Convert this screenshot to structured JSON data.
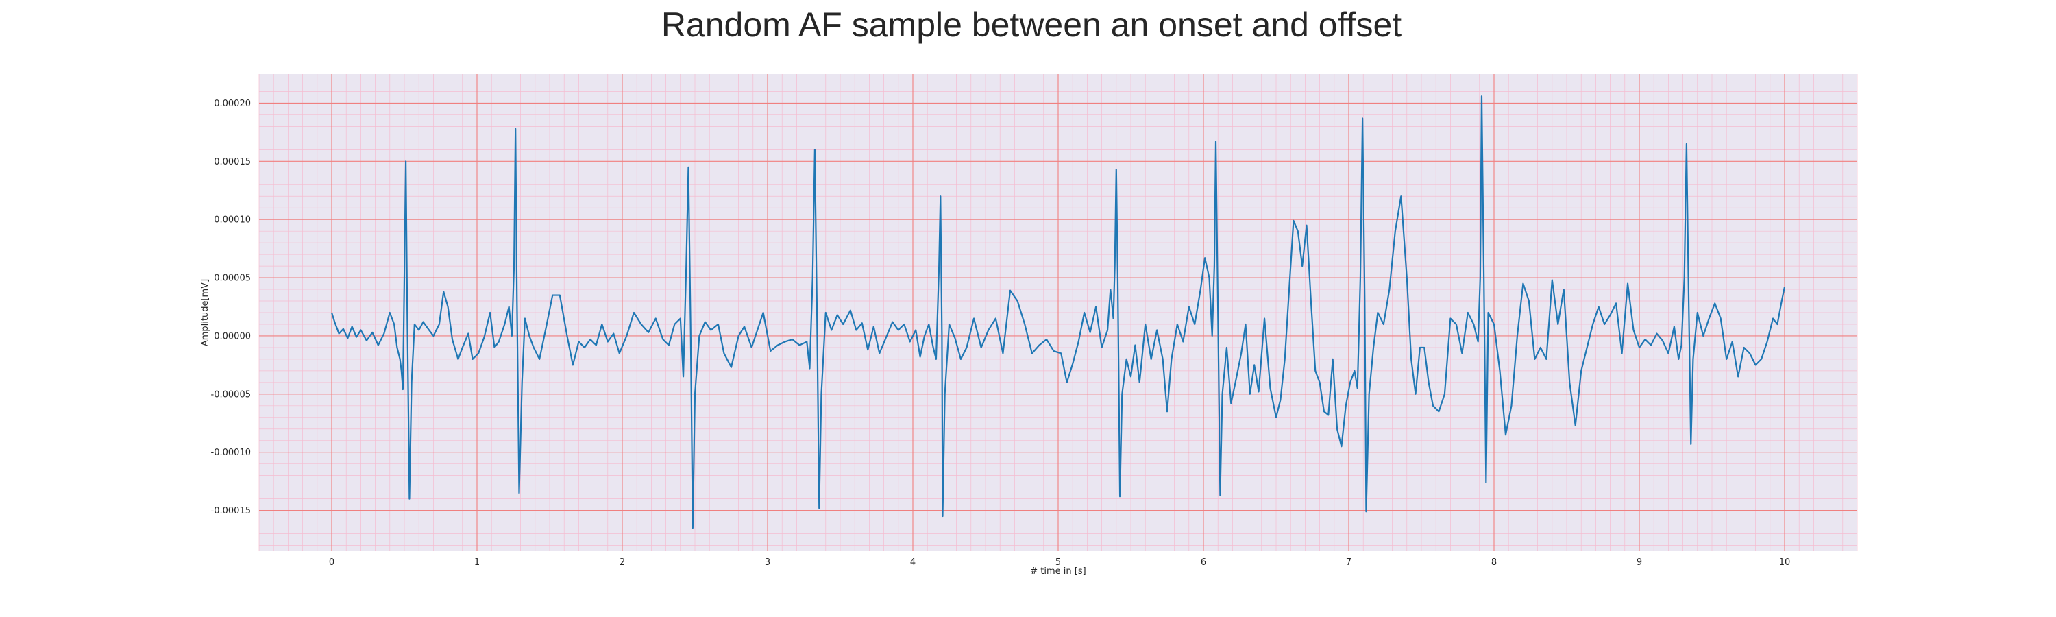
{
  "chart_data": {
    "type": "line",
    "title": "Random AF sample between an onset and offset",
    "xlabel": "# time in [s]",
    "ylabel": "Amplitude[mV]",
    "xlim": [
      -0.5,
      10.5
    ],
    "ylim": [
      -0.000185,
      0.000225
    ],
    "x_ticks": [
      0,
      1,
      2,
      3,
      4,
      5,
      6,
      7,
      8,
      9,
      10
    ],
    "x_tick_labels": [
      "0",
      "1",
      "2",
      "3",
      "4",
      "5",
      "6",
      "7",
      "8",
      "9",
      "10"
    ],
    "y_ticks": [
      -0.00015,
      -0.0001,
      -5e-05,
      0,
      5e-05,
      0.0001,
      0.00015,
      0.0002
    ],
    "y_tick_labels": [
      "-0.00015",
      "-0.00010",
      "-0.00005",
      "0.00000",
      "0.00005",
      "0.00010",
      "0.00015",
      "0.00020"
    ],
    "grid": true,
    "colors": {
      "background": "#eae6f1",
      "major_grid": "#f08080",
      "minor_grid": "#f5bcd0",
      "line": "#1f77b4"
    },
    "series": [
      {
        "name": "",
        "points": [
          [
            0.0,
            2e-05
          ],
          [
            0.02,
            1.2e-05
          ],
          [
            0.05,
            2e-06
          ],
          [
            0.08,
            6e-06
          ],
          [
            0.11,
            -2e-06
          ],
          [
            0.14,
            8e-06
          ],
          [
            0.17,
            -1e-06
          ],
          [
            0.2,
            5e-06
          ],
          [
            0.24,
            -4e-06
          ],
          [
            0.28,
            3e-06
          ],
          [
            0.32,
            -8e-06
          ],
          [
            0.36,
            2e-06
          ],
          [
            0.4,
            2e-05
          ],
          [
            0.43,
            1e-05
          ],
          [
            0.45,
            -1e-05
          ],
          [
            0.47,
            -2e-05
          ],
          [
            0.48,
            -3e-05
          ],
          [
            0.49,
            -4.6e-05
          ],
          [
            0.5,
            5e-05
          ],
          [
            0.51,
            0.00015
          ],
          [
            0.52,
            2e-05
          ],
          [
            0.535,
            -0.00014
          ],
          [
            0.55,
            -4e-05
          ],
          [
            0.57,
            1e-05
          ],
          [
            0.6,
            5e-06
          ],
          [
            0.63,
            1.2e-05
          ],
          [
            0.67,
            5e-06
          ],
          [
            0.7,
            0.0
          ],
          [
            0.74,
            1e-05
          ],
          [
            0.77,
            3.8e-05
          ],
          [
            0.8,
            2.5e-05
          ],
          [
            0.83,
            -3e-06
          ],
          [
            0.87,
            -2e-05
          ],
          [
            0.9,
            -1e-05
          ],
          [
            0.94,
            2e-06
          ],
          [
            0.97,
            -2e-05
          ],
          [
            1.01,
            -1.5e-05
          ],
          [
            1.05,
            -1e-06
          ],
          [
            1.09,
            2e-05
          ],
          [
            1.12,
            -1e-05
          ],
          [
            1.15,
            -5e-06
          ],
          [
            1.19,
            1e-05
          ],
          [
            1.22,
            2.5e-05
          ],
          [
            1.24,
            0.0
          ],
          [
            1.255,
            6e-05
          ],
          [
            1.265,
            0.000178
          ],
          [
            1.275,
            3e-05
          ],
          [
            1.29,
            -0.000135
          ],
          [
            1.31,
            -4e-05
          ],
          [
            1.33,
            1.5e-05
          ],
          [
            1.36,
            0.0
          ],
          [
            1.39,
            -1e-05
          ],
          [
            1.43,
            -2e-05
          ],
          [
            1.48,
            1e-05
          ],
          [
            1.52,
            3.5e-05
          ],
          [
            1.57,
            3.5e-05
          ],
          [
            1.62,
            0.0
          ],
          [
            1.66,
            -2.5e-05
          ],
          [
            1.7,
            -5e-06
          ],
          [
            1.74,
            -1e-05
          ],
          [
            1.78,
            -3e-06
          ],
          [
            1.82,
            -8e-06
          ],
          [
            1.86,
            1e-05
          ],
          [
            1.9,
            -5e-06
          ],
          [
            1.94,
            2e-06
          ],
          [
            1.98,
            -1.5e-05
          ],
          [
            2.03,
            0.0
          ],
          [
            2.08,
            2e-05
          ],
          [
            2.13,
            1e-05
          ],
          [
            2.18,
            3e-06
          ],
          [
            2.23,
            1.5e-05
          ],
          [
            2.28,
            -3e-06
          ],
          [
            2.32,
            -8e-06
          ],
          [
            2.36,
            1e-05
          ],
          [
            2.4,
            1.5e-05
          ],
          [
            2.42,
            -3.5e-05
          ],
          [
            2.44,
            6e-05
          ],
          [
            2.455,
            0.000145
          ],
          [
            2.47,
            1e-05
          ],
          [
            2.485,
            -0.000165
          ],
          [
            2.5,
            -5e-05
          ],
          [
            2.53,
            0.0
          ],
          [
            2.57,
            1.2e-05
          ],
          [
            2.61,
            5e-06
          ],
          [
            2.66,
            1e-05
          ],
          [
            2.7,
            -1.5e-05
          ],
          [
            2.75,
            -2.7e-05
          ],
          [
            2.8,
            0.0
          ],
          [
            2.84,
            8e-06
          ],
          [
            2.89,
            -1e-05
          ],
          [
            2.93,
            5e-06
          ],
          [
            2.97,
            2e-05
          ],
          [
            3.02,
            -1.3e-05
          ],
          [
            3.07,
            -8e-06
          ],
          [
            3.12,
            -5e-06
          ],
          [
            3.17,
            -3e-06
          ],
          [
            3.22,
            -8e-06
          ],
          [
            3.27,
            -5e-06
          ],
          [
            3.29,
            -2.8e-05
          ],
          [
            3.31,
            5e-05
          ],
          [
            3.325,
            0.00016
          ],
          [
            3.34,
            2e-05
          ],
          [
            3.355,
            -0.000148
          ],
          [
            3.37,
            -5e-05
          ],
          [
            3.4,
            2e-05
          ],
          [
            3.44,
            5e-06
          ],
          [
            3.48,
            1.8e-05
          ],
          [
            3.52,
            1e-05
          ],
          [
            3.57,
            2.2e-05
          ],
          [
            3.61,
            5e-06
          ],
          [
            3.65,
            1.1e-05
          ],
          [
            3.69,
            -1.2e-05
          ],
          [
            3.73,
            8e-06
          ],
          [
            3.77,
            -1.5e-05
          ],
          [
            3.81,
            -3e-06
          ],
          [
            3.86,
            1.2e-05
          ],
          [
            3.9,
            5e-06
          ],
          [
            3.94,
            1e-05
          ],
          [
            3.98,
            -5e-06
          ],
          [
            4.02,
            5e-06
          ],
          [
            4.05,
            -1.8e-05
          ],
          [
            4.08,
            0.0
          ],
          [
            4.11,
            1e-05
          ],
          [
            4.14,
            -1e-05
          ],
          [
            4.16,
            -2e-05
          ],
          [
            4.18,
            6e-05
          ],
          [
            4.19,
            0.00012
          ],
          [
            4.2,
            0.0
          ],
          [
            4.205,
            -0.000155
          ],
          [
            4.22,
            -5e-05
          ],
          [
            4.25,
            1e-05
          ],
          [
            4.29,
            -2e-06
          ],
          [
            4.33,
            -2e-05
          ],
          [
            4.37,
            -1e-05
          ],
          [
            4.42,
            1.5e-05
          ],
          [
            4.47,
            -1e-05
          ],
          [
            4.52,
            5e-06
          ],
          [
            4.57,
            1.5e-05
          ],
          [
            4.62,
            -1.5e-05
          ],
          [
            4.67,
            3.9e-05
          ],
          [
            4.72,
            3e-05
          ],
          [
            4.77,
            1e-05
          ],
          [
            4.82,
            -1.5e-05
          ],
          [
            4.87,
            -8e-06
          ],
          [
            4.92,
            -3e-06
          ],
          [
            4.97,
            -1.3e-05
          ],
          [
            5.02,
            -1.5e-05
          ],
          [
            5.06,
            -4e-05
          ],
          [
            5.1,
            -2.4e-05
          ],
          [
            5.14,
            -5e-06
          ],
          [
            5.18,
            2e-05
          ],
          [
            5.22,
            3e-06
          ],
          [
            5.26,
            2.5e-05
          ],
          [
            5.3,
            -1e-05
          ],
          [
            5.34,
            5e-06
          ],
          [
            5.36,
            4e-05
          ],
          [
            5.38,
            1.5e-05
          ],
          [
            5.39,
            6e-05
          ],
          [
            5.4,
            0.000143
          ],
          [
            5.41,
            5e-05
          ],
          [
            5.425,
            -0.000138
          ],
          [
            5.44,
            -5e-05
          ],
          [
            5.47,
            -2e-05
          ],
          [
            5.5,
            -3.5e-05
          ],
          [
            5.53,
            -8e-06
          ],
          [
            5.56,
            -4e-05
          ],
          [
            5.6,
            1e-05
          ],
          [
            5.64,
            -2e-05
          ],
          [
            5.68,
            5e-06
          ],
          [
            5.72,
            -2e-05
          ],
          [
            5.75,
            -6.5e-05
          ],
          [
            5.78,
            -2e-05
          ],
          [
            5.82,
            1e-05
          ],
          [
            5.86,
            -5e-06
          ],
          [
            5.9,
            2.5e-05
          ],
          [
            5.94,
            1e-05
          ],
          [
            5.98,
            4e-05
          ],
          [
            6.01,
            6.7e-05
          ],
          [
            6.04,
            5e-05
          ],
          [
            6.06,
            0.0
          ],
          [
            6.075,
            6e-05
          ],
          [
            6.085,
            0.000167
          ],
          [
            6.1,
            2e-05
          ],
          [
            6.115,
            -0.000137
          ],
          [
            6.13,
            -5e-05
          ],
          [
            6.16,
            -1e-05
          ],
          [
            6.19,
            -5.8e-05
          ],
          [
            6.22,
            -4e-05
          ],
          [
            6.26,
            -1.5e-05
          ],
          [
            6.29,
            1e-05
          ],
          [
            6.32,
            -5e-05
          ],
          [
            6.35,
            -2.5e-05
          ],
          [
            6.38,
            -4.8e-05
          ],
          [
            6.42,
            1.5e-05
          ],
          [
            6.46,
            -4.5e-05
          ],
          [
            6.5,
            -7e-05
          ],
          [
            6.53,
            -5.5e-05
          ],
          [
            6.56,
            -2e-05
          ],
          [
            6.59,
            4e-05
          ],
          [
            6.62,
            9.9e-05
          ],
          [
            6.65,
            9e-05
          ],
          [
            6.68,
            6e-05
          ],
          [
            6.71,
            9.5e-05
          ],
          [
            6.74,
            3e-05
          ],
          [
            6.77,
            -3e-05
          ],
          [
            6.8,
            -4e-05
          ],
          [
            6.83,
            -6.5e-05
          ],
          [
            6.86,
            -6.8e-05
          ],
          [
            6.89,
            -2e-05
          ],
          [
            6.92,
            -8e-05
          ],
          [
            6.95,
            -9.5e-05
          ],
          [
            6.98,
            -6e-05
          ],
          [
            7.01,
            -4e-05
          ],
          [
            7.04,
            -3e-05
          ],
          [
            7.06,
            -4.5e-05
          ],
          [
            7.08,
            5e-05
          ],
          [
            7.095,
            0.000187
          ],
          [
            7.11,
            3e-05
          ],
          [
            7.12,
            -0.000151
          ],
          [
            7.14,
            -5e-05
          ],
          [
            7.17,
            -1e-05
          ],
          [
            7.2,
            2e-05
          ],
          [
            7.24,
            1e-05
          ],
          [
            7.28,
            4e-05
          ],
          [
            7.32,
            9e-05
          ],
          [
            7.36,
            0.00012
          ],
          [
            7.4,
            5e-05
          ],
          [
            7.43,
            -2e-05
          ],
          [
            7.46,
            -5e-05
          ],
          [
            7.49,
            -1e-05
          ],
          [
            7.52,
            -1e-05
          ],
          [
            7.55,
            -4e-05
          ],
          [
            7.58,
            -6e-05
          ],
          [
            7.62,
            -6.5e-05
          ],
          [
            7.66,
            -5e-05
          ],
          [
            7.7,
            1.5e-05
          ],
          [
            7.74,
            1e-05
          ],
          [
            7.78,
            -1.5e-05
          ],
          [
            7.82,
            2e-05
          ],
          [
            7.86,
            1e-05
          ],
          [
            7.89,
            -5e-06
          ],
          [
            7.905,
            5e-05
          ],
          [
            7.915,
            0.000206
          ],
          [
            7.93,
            5e-05
          ],
          [
            7.945,
            -0.000126
          ],
          [
            7.96,
            2e-05
          ],
          [
            8.0,
            1e-05
          ],
          [
            8.04,
            -3e-05
          ],
          [
            8.08,
            -8.5e-05
          ],
          [
            8.12,
            -6e-05
          ],
          [
            8.16,
            0.0
          ],
          [
            8.2,
            4.5e-05
          ],
          [
            8.24,
            3e-05
          ],
          [
            8.28,
            -2e-05
          ],
          [
            8.32,
            -1e-05
          ],
          [
            8.36,
            -2e-05
          ],
          [
            8.4,
            4.8e-05
          ],
          [
            8.44,
            1e-05
          ],
          [
            8.48,
            4e-05
          ],
          [
            8.52,
            -4e-05
          ],
          [
            8.56,
            -7.7e-05
          ],
          [
            8.6,
            -3e-05
          ],
          [
            8.64,
            -1e-05
          ],
          [
            8.68,
            1e-05
          ],
          [
            8.72,
            2.5e-05
          ],
          [
            8.76,
            1e-05
          ],
          [
            8.8,
            1.8e-05
          ],
          [
            8.84,
            2.8e-05
          ],
          [
            8.88,
            -1.5e-05
          ],
          [
            8.92,
            4.5e-05
          ],
          [
            8.96,
            5e-06
          ],
          [
            9.0,
            -1e-05
          ],
          [
            9.04,
            -3e-06
          ],
          [
            9.08,
            -8e-06
          ],
          [
            9.12,
            2e-06
          ],
          [
            9.16,
            -4e-06
          ],
          [
            9.2,
            -1.5e-05
          ],
          [
            9.24,
            8e-06
          ],
          [
            9.27,
            -2e-05
          ],
          [
            9.29,
            -8e-06
          ],
          [
            9.31,
            5e-05
          ],
          [
            9.325,
            0.000165
          ],
          [
            9.34,
            3e-05
          ],
          [
            9.355,
            -9.3e-05
          ],
          [
            9.37,
            -2e-05
          ],
          [
            9.4,
            2e-05
          ],
          [
            9.44,
            0.0
          ],
          [
            9.48,
            1.5e-05
          ],
          [
            9.52,
            2.8e-05
          ],
          [
            9.56,
            1.5e-05
          ],
          [
            9.6,
            -2e-05
          ],
          [
            9.64,
            -5e-06
          ],
          [
            9.68,
            -3.5e-05
          ],
          [
            9.72,
            -1e-05
          ],
          [
            9.76,
            -1.5e-05
          ],
          [
            9.8,
            -2.5e-05
          ],
          [
            9.84,
            -2e-05
          ],
          [
            9.88,
            -5e-06
          ],
          [
            9.92,
            1.5e-05
          ],
          [
            9.95,
            1e-05
          ],
          [
            9.98,
            3e-05
          ],
          [
            10.0,
            4.2e-05
          ]
        ]
      }
    ]
  }
}
